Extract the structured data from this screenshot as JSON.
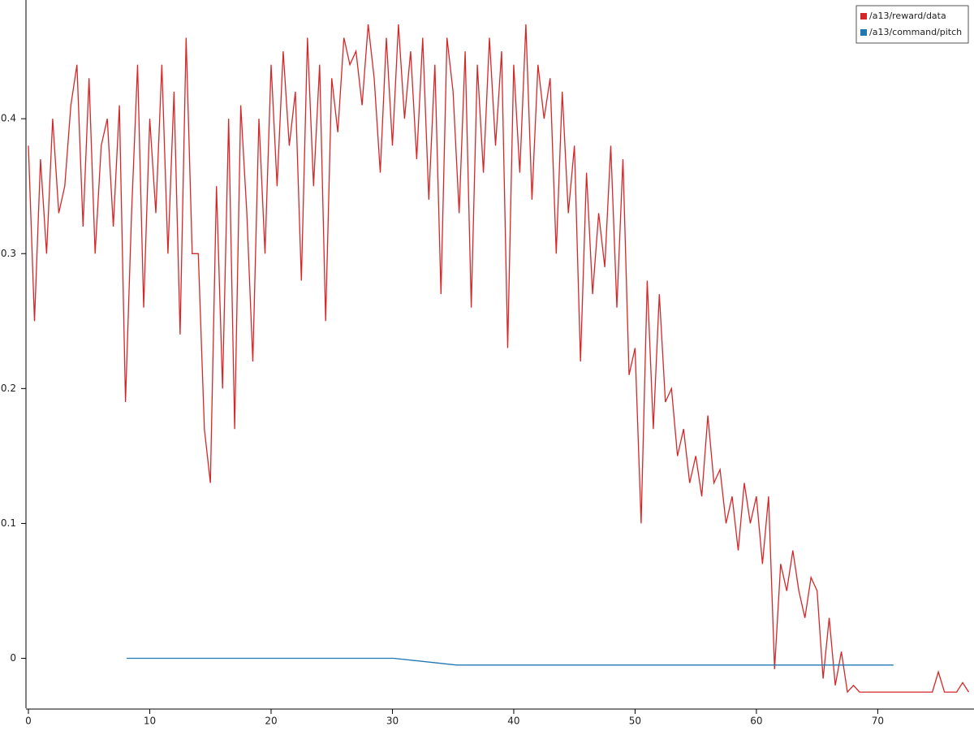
{
  "chart_data": {
    "type": "line",
    "xlim": [
      0,
      77.8
    ],
    "ylim": [
      -0.037,
      0.488
    ],
    "xticks": [
      0,
      10,
      20,
      30,
      40,
      50,
      60,
      70
    ],
    "yticks": [
      0,
      0.1,
      0.2,
      0.3,
      0.4
    ],
    "legend": "upper right",
    "series": [
      {
        "name": "/a13/reward/data",
        "color": "#d62728",
        "x": [
          0,
          0.5,
          1,
          1.5,
          2,
          2.5,
          3,
          3.5,
          4,
          4.5,
          5,
          5.5,
          6,
          6.5,
          7,
          7.5,
          8,
          8.5,
          9,
          9.5,
          10,
          10.5,
          11,
          11.5,
          12,
          12.5,
          13,
          13.5,
          14,
          14.5,
          15,
          15.5,
          16,
          16.5,
          17,
          17.5,
          18,
          18.5,
          19,
          19.5,
          20,
          20.5,
          21,
          21.5,
          22,
          22.5,
          23,
          23.5,
          24,
          24.5,
          25,
          25.5,
          26,
          26.5,
          27,
          27.5,
          28,
          28.5,
          29,
          29.5,
          30,
          30.5,
          31,
          31.5,
          32,
          32.5,
          33,
          33.5,
          34,
          34.5,
          35,
          35.5,
          36,
          36.5,
          37,
          37.5,
          38,
          38.5,
          39,
          39.5,
          40,
          40.5,
          41,
          41.5,
          42,
          42.5,
          43,
          43.5,
          44,
          44.5,
          45,
          45.5,
          46,
          46.5,
          47,
          47.5,
          48,
          48.5,
          49,
          49.5,
          50,
          50.5,
          51,
          51.5,
          52,
          52.5,
          53,
          53.5,
          54,
          54.5,
          55,
          55.5,
          56,
          56.5,
          57,
          57.5,
          58,
          58.5,
          59,
          59.5,
          60,
          60.5,
          61,
          61.5,
          62,
          62.5,
          63,
          63.5,
          64,
          64.5,
          65,
          65.5,
          66,
          66.5,
          67,
          67.5,
          68,
          68.5,
          69,
          69.5,
          70,
          70.5,
          71,
          71.5,
          72,
          72.5,
          73,
          73.5,
          74,
          74.5,
          75,
          75.5,
          76,
          76.5,
          77,
          77.5
        ],
        "values": [
          0.38,
          0.25,
          0.37,
          0.3,
          0.4,
          0.33,
          0.35,
          0.41,
          0.44,
          0.32,
          0.43,
          0.3,
          0.38,
          0.4,
          0.32,
          0.41,
          0.19,
          0.33,
          0.44,
          0.26,
          0.4,
          0.33,
          0.44,
          0.3,
          0.42,
          0.24,
          0.46,
          0.3,
          0.3,
          0.17,
          0.13,
          0.35,
          0.2,
          0.4,
          0.17,
          0.41,
          0.33,
          0.22,
          0.4,
          0.3,
          0.44,
          0.35,
          0.45,
          0.38,
          0.42,
          0.28,
          0.46,
          0.35,
          0.44,
          0.25,
          0.43,
          0.39,
          0.46,
          0.44,
          0.45,
          0.41,
          0.47,
          0.43,
          0.36,
          0.46,
          0.38,
          0.47,
          0.4,
          0.45,
          0.37,
          0.46,
          0.34,
          0.44,
          0.27,
          0.46,
          0.42,
          0.33,
          0.45,
          0.26,
          0.44,
          0.36,
          0.46,
          0.38,
          0.45,
          0.23,
          0.44,
          0.36,
          0.47,
          0.34,
          0.44,
          0.4,
          0.43,
          0.3,
          0.42,
          0.33,
          0.38,
          0.22,
          0.36,
          0.27,
          0.33,
          0.29,
          0.38,
          0.26,
          0.37,
          0.21,
          0.23,
          0.1,
          0.28,
          0.17,
          0.27,
          0.19,
          0.2,
          0.15,
          0.17,
          0.13,
          0.15,
          0.12,
          0.18,
          0.13,
          0.14,
          0.1,
          0.12,
          0.08,
          0.13,
          0.1,
          0.12,
          0.07,
          0.12,
          -0.008,
          0.07,
          0.05,
          0.08,
          0.05,
          0.03,
          0.06,
          0.05,
          -0.015,
          0.03,
          -0.02,
          0.005,
          -0.025,
          -0.02,
          -0.025,
          -0.025,
          -0.025,
          -0.025,
          -0.025,
          -0.025,
          -0.025,
          -0.025,
          -0.025,
          -0.025,
          -0.025,
          -0.025,
          -0.025,
          -0.01,
          -0.025,
          -0.025,
          -0.025,
          -0.018,
          -0.025
        ]
      },
      {
        "name": "/a13/command/pitch",
        "color": "#1f77b4",
        "x": [
          8.1,
          30.1,
          35.3,
          71.3
        ],
        "values": [
          0,
          0,
          -0.005,
          -0.005
        ]
      }
    ]
  }
}
